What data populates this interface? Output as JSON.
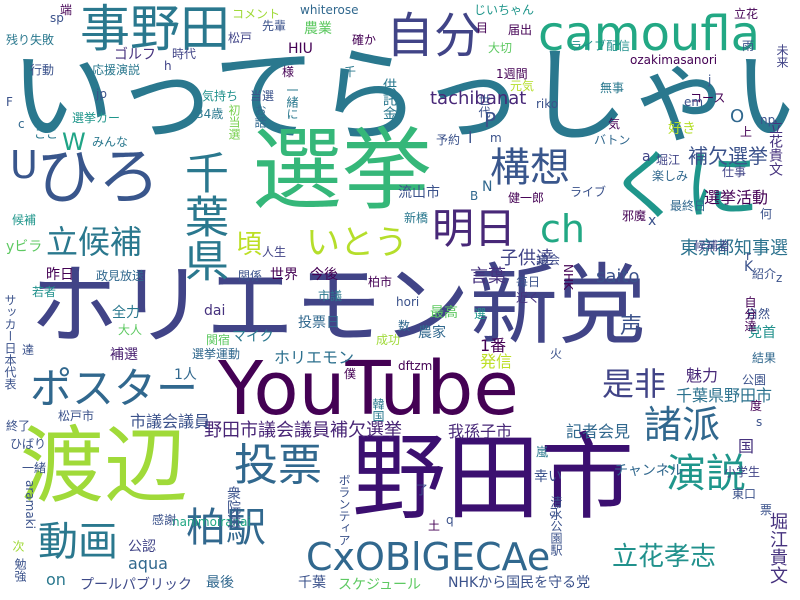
{
  "words": [
    {
      "text": "ホリエモン新党",
      "color": "#414487"
    },
    {
      "text": "いってらっしゃい",
      "color": "#2a788e"
    },
    {
      "text": "YouTube",
      "color": "#440154"
    },
    {
      "text": "野田市",
      "color": "#3b0f70"
    },
    {
      "text": "選挙",
      "color": "#35b779"
    },
    {
      "text": "渡辺",
      "color": "#a0da39"
    },
    {
      "text": "ひろ",
      "color": "#39568c"
    },
    {
      "text": "くに",
      "color": "#1f968b"
    },
    {
      "text": "千葉県",
      "color": "#2a788e"
    },
    {
      "text": "camoufla",
      "color": "#22a884"
    },
    {
      "text": "事野田",
      "color": "#2a788e"
    },
    {
      "text": "自分",
      "color": "#414487"
    },
    {
      "text": "構想",
      "color": "#39568c"
    },
    {
      "text": "明日",
      "color": "#482878"
    },
    {
      "text": "ch",
      "color": "#22a884"
    },
    {
      "text": "いとう",
      "color": "#b5de2b"
    },
    {
      "text": "立候補",
      "color": "#2a788e"
    },
    {
      "text": "ポスター",
      "color": "#31688e"
    },
    {
      "text": "投票",
      "color": "#31688e"
    },
    {
      "text": "柏駅",
      "color": "#31688e"
    },
    {
      "text": "CxOBlGECAe",
      "color": "#31688e"
    },
    {
      "text": "動画",
      "color": "#2a788e"
    },
    {
      "text": "演説",
      "color": "#1f968b"
    },
    {
      "text": "諸派",
      "color": "#31688e"
    },
    {
      "text": "是非",
      "color": "#414487"
    },
    {
      "text": "立花孝志",
      "color": "#21918c"
    },
    {
      "text": "頃",
      "color": "#bddf26"
    },
    {
      "text": "U",
      "color": "#39568c"
    },
    {
      "text": "W",
      "color": "#20a486"
    },
    {
      "text": "東京都知事選",
      "color": "#2c728e"
    },
    {
      "text": "選挙活動",
      "color": "#440154"
    },
    {
      "text": "補欠選挙",
      "color": "#3b528b"
    },
    {
      "text": "野田市議会議員補欠選挙",
      "color": "#482576"
    },
    {
      "text": "千葉県野田市",
      "color": "#2c728e"
    },
    {
      "text": "声",
      "color": "#3b528b"
    },
    {
      "text": "tachibanat",
      "color": "#482878"
    },
    {
      "text": "saito",
      "color": "#3b528b"
    },
    {
      "text": "子供達",
      "color": "#414487"
    },
    {
      "text": "言葉",
      "color": "#46327e"
    },
    {
      "text": "ホリエモン",
      "color": "#2d708e"
    },
    {
      "text": "市議会議員",
      "color": "#3b528b"
    },
    {
      "text": "我孫子市",
      "color": "#482878"
    },
    {
      "text": "記者会見",
      "color": "#31688e"
    },
    {
      "text": "NHKから国民を守る党",
      "color": "#3b528b"
    },
    {
      "text": "立花貴文",
      "color": "#46327e"
    },
    {
      "text": "堀江貴文",
      "color": "#46327e"
    },
    {
      "text": "プールパブリック",
      "color": "#3e4a89"
    },
    {
      "text": "スケジュール",
      "color": "#5ec962"
    },
    {
      "text": "nanimoiranai",
      "color": "#22a884"
    },
    {
      "text": "aqua",
      "color": "#31688e"
    },
    {
      "text": "on",
      "color": "#2a788e"
    },
    {
      "text": "最後",
      "color": "#31688e"
    },
    {
      "text": "千葉",
      "color": "#3b528b"
    },
    {
      "text": "公認",
      "color": "#414487"
    },
    {
      "text": "感謝",
      "color": "#3b528b"
    },
    {
      "text": "チャンネル",
      "color": "#31688e"
    },
    {
      "text": "魅力",
      "color": "#482878"
    },
    {
      "text": "発信",
      "color": "#bddf26"
    },
    {
      "text": "1番",
      "color": "#440154"
    },
    {
      "text": "投票日",
      "color": "#31688e"
    },
    {
      "text": "マイク",
      "color": "#2a788e"
    },
    {
      "text": "dai",
      "color": "#46327e"
    },
    {
      "text": "全力",
      "color": "#2a788e"
    },
    {
      "text": "大人",
      "color": "#5ec962"
    },
    {
      "text": "補選",
      "color": "#481f70"
    },
    {
      "text": "1人",
      "color": "#31688e"
    },
    {
      "text": "関宿",
      "color": "#5ec962"
    },
    {
      "text": "選挙運動",
      "color": "#31688e"
    },
    {
      "text": "成功",
      "color": "#a0da39"
    },
    {
      "text": "農家",
      "color": "#31688e"
    },
    {
      "text": "最高",
      "color": "#5ec962"
    },
    {
      "text": "hori",
      "color": "#3b528b"
    },
    {
      "text": "dftzm",
      "color": "#440154"
    },
    {
      "text": "今後",
      "color": "#440154"
    },
    {
      "text": "市議",
      "color": "#2a788e"
    },
    {
      "text": "世界",
      "color": "#440154"
    },
    {
      "text": "人生",
      "color": "#414487"
    },
    {
      "text": "関係",
      "color": "#3b528b"
    },
    {
      "text": "昨日",
      "color": "#440154"
    },
    {
      "text": "政見放送",
      "color": "#31688e"
    },
    {
      "text": "若者",
      "color": "#21918c"
    },
    {
      "text": "yビラ",
      "color": "#5ec962"
    },
    {
      "text": "候補",
      "color": "#1f968b"
    },
    {
      "text": "健一郎",
      "color": "#440154"
    },
    {
      "text": "新橋",
      "color": "#2a788e"
    },
    {
      "text": "流山市",
      "color": "#3b528b"
    },
    {
      "text": "毎日",
      "color": "#3b528b"
    },
    {
      "text": "近く",
      "color": "#46327e"
    },
    {
      "text": "議会",
      "color": "#3e4a89"
    },
    {
      "text": "柏市",
      "color": "#440154"
    },
    {
      "text": "紹介",
      "color": "#3b528b"
    },
    {
      "text": "候補者",
      "color": "#414487"
    },
    {
      "text": "邪魔",
      "color": "#440154"
    },
    {
      "text": "最終日",
      "color": "#31688e"
    },
    {
      "text": "楽しみ",
      "color": "#31688e"
    },
    {
      "text": "仕事",
      "color": "#414487"
    },
    {
      "text": "好き",
      "color": "#b5de2b"
    },
    {
      "text": "堀江",
      "color": "#414487"
    },
    {
      "text": "バトン",
      "color": "#31688e"
    },
    {
      "text": "コース",
      "color": "#440154"
    },
    {
      "text": "ライブ",
      "color": "#3b528b"
    },
    {
      "text": "予約",
      "color": "#3b528b"
    },
    {
      "text": "選挙カー",
      "color": "#1f968b"
    },
    {
      "text": "みんな",
      "color": "#2a788e"
    },
    {
      "text": "気持ち",
      "color": "#21918c"
    },
    {
      "text": "当選",
      "color": "#3b528b"
    },
    {
      "text": "34歳",
      "color": "#2a788e"
    },
    {
      "text": "初当選",
      "color": "#7ad151"
    },
    {
      "text": "お話",
      "color": "#31688e"
    },
    {
      "text": "一緒に",
      "color": "#2a788e"
    },
    {
      "text": "供託金",
      "color": "#2a788e"
    },
    {
      "text": "1週間",
      "color": "#440154"
    },
    {
      "text": "ozakimasanori",
      "color": "#440154"
    },
    {
      "text": "元気",
      "color": "#b5de2b"
    },
    {
      "text": "ライブ配信",
      "color": "#21918c"
    },
    {
      "text": "無事",
      "color": "#2a788e"
    },
    {
      "text": "大切",
      "color": "#5ec962"
    },
    {
      "text": "届出",
      "color": "#440154"
    },
    {
      "text": "HIU",
      "color": "#440154"
    },
    {
      "text": "農業",
      "color": "#5ec962"
    },
    {
      "text": "コメント",
      "color": "#a0da39"
    },
    {
      "text": "whiterose",
      "color": "#31688e"
    },
    {
      "text": "じいちゃん",
      "color": "#1f968b"
    },
    {
      "text": "確か",
      "color": "#440154"
    },
    {
      "text": "先輩",
      "color": "#3b528b"
    },
    {
      "text": "松戸",
      "color": "#414487"
    },
    {
      "text": "ゴルフ",
      "color": "#46327e"
    },
    {
      "text": "時代",
      "color": "#414487"
    },
    {
      "text": "応援演説",
      "color": "#2a788e"
    },
    {
      "text": "行動",
      "color": "#3b528b"
    },
    {
      "text": "残り失敗",
      "color": "#2a788e"
    },
    {
      "text": "sp",
      "color": "#3b528b"
    },
    {
      "text": "端",
      "color": "#440154"
    },
    {
      "text": "jp",
      "color": "#3b528b"
    },
    {
      "text": "ここ",
      "color": "#2a788e"
    },
    {
      "text": "様",
      "color": "#440154"
    },
    {
      "text": "千",
      "color": "#2a788e"
    },
    {
      "text": "h",
      "color": "#414487"
    },
    {
      "text": "目",
      "color": "#440154"
    },
    {
      "text": "立花",
      "color": "#440154"
    },
    {
      "text": "雨",
      "color": "#3b528b"
    },
    {
      "text": "未来",
      "color": "#414487"
    },
    {
      "text": "j",
      "color": "#3b528b"
    },
    {
      "text": "em",
      "color": "#3b528b"
    },
    {
      "text": "riko",
      "color": "#3b528b"
    },
    {
      "text": "O",
      "color": "#31688e"
    },
    {
      "text": "上",
      "color": "#440154"
    },
    {
      "text": "np",
      "color": "#3b528b"
    },
    {
      "text": "気",
      "color": "#440154"
    },
    {
      "text": "世代",
      "color": "#3b528b"
    },
    {
      "text": "P",
      "color": "#3b528b"
    },
    {
      "text": "m",
      "color": "#3b528b"
    },
    {
      "text": "l",
      "color": "#3b528b"
    },
    {
      "text": "N",
      "color": "#31688e"
    },
    {
      "text": "B",
      "color": "#31688e"
    },
    {
      "text": "x",
      "color": "#3b528b"
    },
    {
      "text": "a",
      "color": "#414487"
    },
    {
      "text": "何",
      "color": "#3b528b"
    },
    {
      "text": "F",
      "color": "#3b528b"
    },
    {
      "text": "c",
      "color": "#31688e"
    },
    {
      "text": "r",
      "color": "#3b528b"
    },
    {
      "text": "K",
      "color": "#3b528b"
    },
    {
      "text": "z",
      "color": "#3b528b"
    },
    {
      "text": "選",
      "color": "#1f968b"
    },
    {
      "text": "NHK",
      "color": "#440154"
    },
    {
      "text": "党首",
      "color": "#21918c"
    },
    {
      "text": "自然",
      "color": "#3b528b"
    },
    {
      "text": "結果",
      "color": "#31688e"
    },
    {
      "text": "公園",
      "color": "#3b528b"
    },
    {
      "text": "自分達",
      "color": "#440154"
    },
    {
      "text": "度",
      "color": "#440154"
    },
    {
      "text": "s",
      "color": "#3b528b"
    },
    {
      "text": "嵐",
      "color": "#2a788e"
    },
    {
      "text": "幸い",
      "color": "#3b528b"
    },
    {
      "text": "国",
      "color": "#46327e"
    },
    {
      "text": "僕",
      "color": "#440154"
    },
    {
      "text": "韓国",
      "color": "#2a788e"
    },
    {
      "text": "火",
      "color": "#3b528b"
    },
    {
      "text": "数",
      "color": "#31688e"
    },
    {
      "text": "小学生",
      "color": "#414487"
    },
    {
      "text": "東口",
      "color": "#3b528b"
    },
    {
      "text": "票",
      "color": "#3b528b"
    },
    {
      "text": "ご",
      "color": "#3b528b"
    },
    {
      "text": "土",
      "color": "#440154"
    },
    {
      "text": "q",
      "color": "#3b528b"
    },
    {
      "text": "衆院選",
      "color": "#3b528b"
    },
    {
      "text": "清水公園駅",
      "color": "#3b528b"
    },
    {
      "text": "ボランティア",
      "color": "#3b528b"
    },
    {
      "text": "aramaki",
      "color": "#3b528b"
    },
    {
      "text": "ひばり",
      "color": "#3b528b"
    },
    {
      "text": "一緒",
      "color": "#3b528b"
    },
    {
      "text": "終了",
      "color": "#3b528b"
    },
    {
      "text": "松戸市",
      "color": "#3b528b"
    },
    {
      "text": "サッカー日本代表",
      "color": "#3b528b"
    },
    {
      "text": "達",
      "color": "#3b528b"
    },
    {
      "text": "勉強",
      "color": "#3b528b"
    },
    {
      "text": "次",
      "color": "#a0da39"
    },
    {
      "text": "了",
      "color": "#3b528b"
    }
  ]
}
